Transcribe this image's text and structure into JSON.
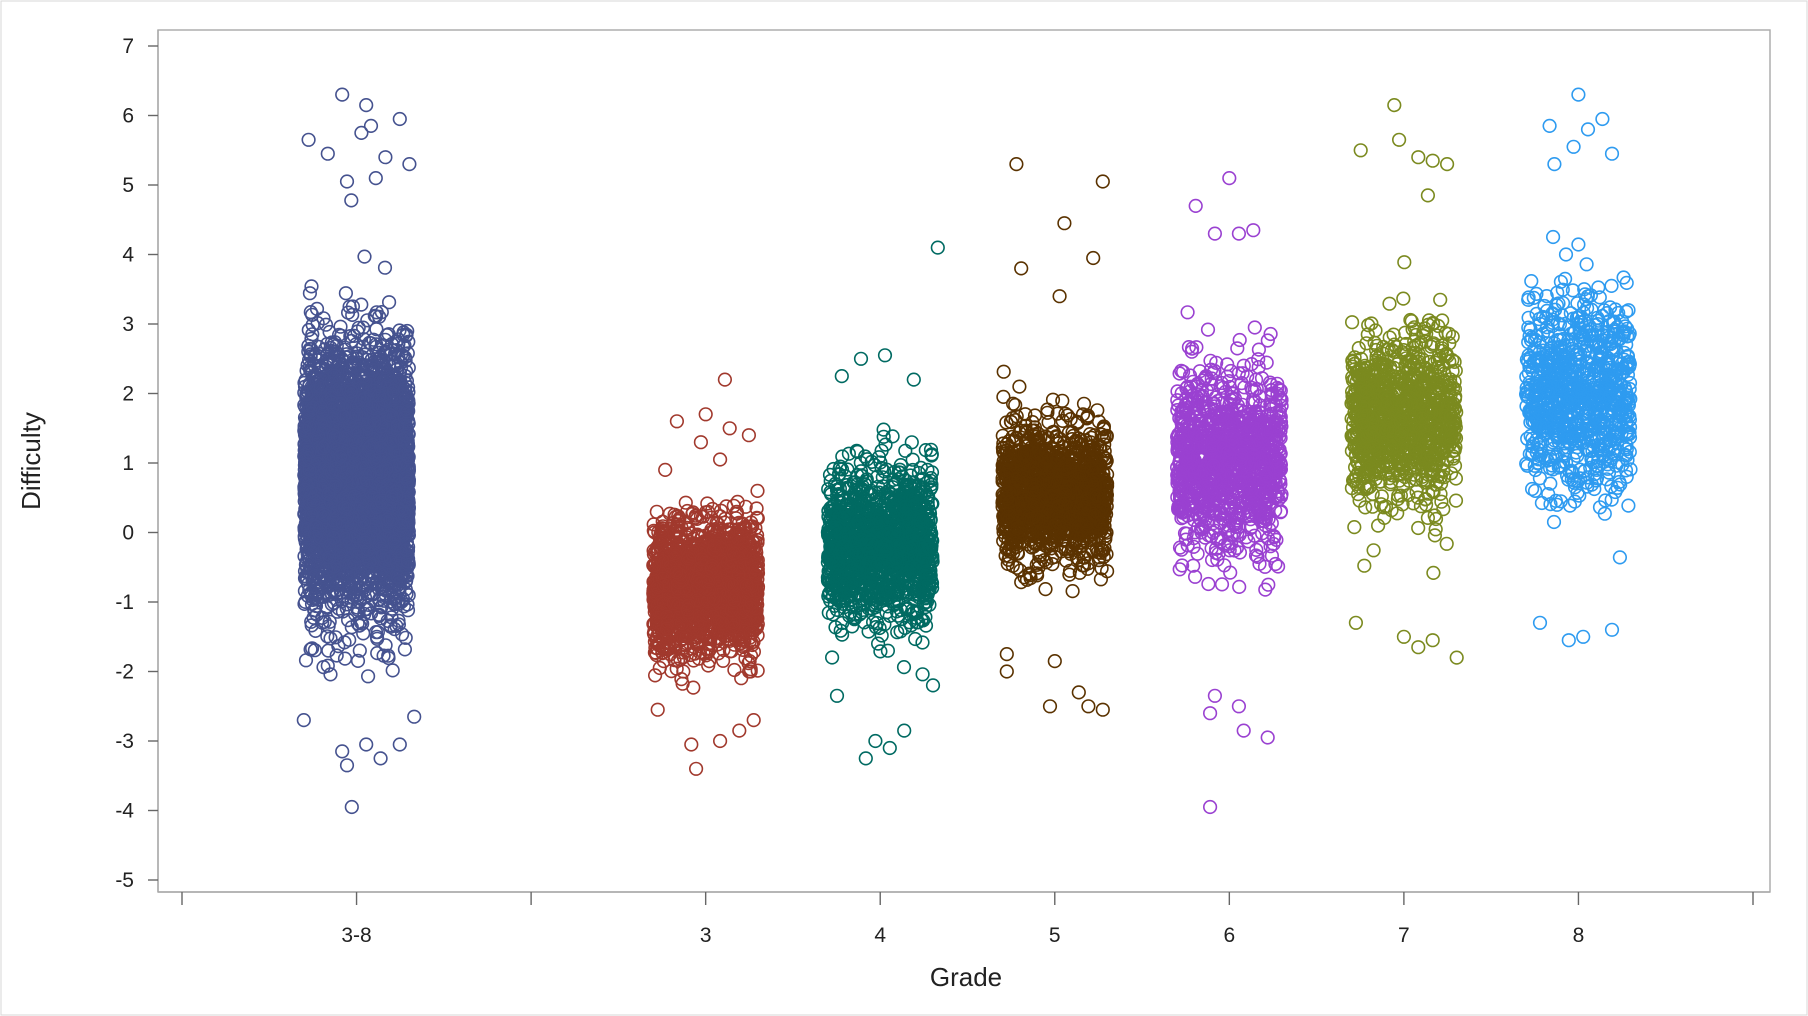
{
  "chart_data": {
    "type": "scatter",
    "title": "",
    "xlabel": "Grade",
    "ylabel": "Difficulty",
    "ylim": [
      -5,
      7
    ],
    "yticks": [
      "7",
      "6",
      "5",
      "4",
      "3",
      "2",
      "1",
      "0",
      "-1",
      "-2",
      "-3",
      "-4",
      "-5"
    ],
    "categories": [
      "",
      "3-8",
      "",
      "3",
      "4",
      "5",
      "6",
      "7",
      "8",
      ""
    ],
    "marker": "open-circle",
    "grid": false,
    "legend": "none",
    "series": [
      {
        "category": "3-8",
        "color": "#45528f",
        "count": 5200,
        "center": 0.8,
        "spread": 1.35,
        "min": -3.95,
        "max": 6.3,
        "outliers": [
          [
            -0.05,
            -3.95
          ],
          [
            -0.1,
            -3.35
          ],
          [
            0.25,
            -3.25
          ],
          [
            -0.15,
            -3.15
          ],
          [
            0.1,
            -3.05
          ],
          [
            0.45,
            -3.05
          ],
          [
            -0.55,
            -2.7
          ],
          [
            0.6,
            -2.65
          ],
          [
            -0.5,
            5.65
          ],
          [
            -0.15,
            6.3
          ],
          [
            0.1,
            6.15
          ],
          [
            0.15,
            5.85
          ],
          [
            0.05,
            5.75
          ],
          [
            0.45,
            5.95
          ],
          [
            -0.3,
            5.45
          ],
          [
            0.3,
            5.4
          ],
          [
            0.2,
            5.1
          ],
          [
            -0.1,
            5.05
          ],
          [
            0.55,
            5.3
          ]
        ]
      },
      {
        "category": "3",
        "color": "#a1392d",
        "count": 1900,
        "center": -0.8,
        "spread": 0.75,
        "min": -3.4,
        "max": 2.2,
        "outliers": [
          [
            -0.1,
            -3.4
          ],
          [
            -0.15,
            -3.05
          ],
          [
            0.15,
            -3.0
          ],
          [
            0.35,
            -2.85
          ],
          [
            0.5,
            -2.7
          ],
          [
            -0.5,
            -2.55
          ],
          [
            0.2,
            2.2
          ],
          [
            -0.3,
            1.6
          ],
          [
            0.0,
            1.7
          ],
          [
            0.45,
            1.4
          ],
          [
            0.25,
            1.5
          ],
          [
            -0.05,
            1.3
          ],
          [
            0.15,
            1.05
          ]
        ]
      },
      {
        "category": "4",
        "color": "#006a62",
        "count": 1400,
        "center": -0.2,
        "spread": 0.85,
        "min": -3.25,
        "max": 4.1,
        "outliers": [
          [
            -0.15,
            -3.25
          ],
          [
            0.1,
            -3.1
          ],
          [
            -0.05,
            -3.0
          ],
          [
            0.25,
            -2.85
          ],
          [
            0.55,
            -2.2
          ],
          [
            -0.45,
            -2.35
          ],
          [
            0.6,
            4.1
          ],
          [
            -0.2,
            2.5
          ],
          [
            0.05,
            2.55
          ],
          [
            0.35,
            2.2
          ],
          [
            -0.4,
            2.25
          ]
        ]
      },
      {
        "category": "5",
        "color": "#5a3200",
        "count": 1500,
        "center": 0.55,
        "spread": 0.75,
        "min": -2.55,
        "max": 5.3,
        "outliers": [
          [
            -0.4,
            5.3
          ],
          [
            0.5,
            5.05
          ],
          [
            0.1,
            4.45
          ],
          [
            0.4,
            3.95
          ],
          [
            -0.35,
            3.8
          ],
          [
            0.05,
            3.4
          ],
          [
            -0.5,
            -1.75
          ],
          [
            -0.5,
            -2.0
          ],
          [
            0.0,
            -1.85
          ],
          [
            0.25,
            -2.3
          ],
          [
            -0.05,
            -2.5
          ],
          [
            0.35,
            -2.5
          ],
          [
            0.5,
            -2.55
          ]
        ]
      },
      {
        "category": "6",
        "color": "#9a41d1",
        "count": 1200,
        "center": 1.05,
        "spread": 1.0,
        "min": -3.95,
        "max": 5.1,
        "outliers": [
          [
            -0.2,
            -3.95
          ],
          [
            -0.15,
            -2.35
          ],
          [
            0.1,
            -2.5
          ],
          [
            0.15,
            -2.85
          ],
          [
            0.4,
            -2.95
          ],
          [
            -0.2,
            -2.6
          ],
          [
            0.0,
            5.1
          ],
          [
            -0.35,
            4.7
          ],
          [
            -0.15,
            4.3
          ],
          [
            0.1,
            4.3
          ],
          [
            0.25,
            4.35
          ]
        ]
      },
      {
        "category": "7",
        "color": "#7b8a1f",
        "count": 1100,
        "center": 1.6,
        "spread": 0.95,
        "min": -1.8,
        "max": 6.15,
        "outliers": [
          [
            -0.1,
            6.15
          ],
          [
            -0.05,
            5.65
          ],
          [
            -0.45,
            5.5
          ],
          [
            0.15,
            5.4
          ],
          [
            0.3,
            5.35
          ],
          [
            0.45,
            5.3
          ],
          [
            0.25,
            4.85
          ],
          [
            -0.5,
            -1.3
          ],
          [
            0.15,
            -1.65
          ],
          [
            0.3,
            -1.55
          ],
          [
            0.55,
            -1.8
          ],
          [
            0.0,
            -1.5
          ]
        ]
      },
      {
        "category": "8",
        "color": "#2e9bf0",
        "count": 900,
        "center": 2.0,
        "spread": 1.15,
        "min": -1.55,
        "max": 6.3,
        "outliers": [
          [
            0.0,
            6.3
          ],
          [
            -0.3,
            5.85
          ],
          [
            0.1,
            5.8
          ],
          [
            0.25,
            5.95
          ],
          [
            -0.05,
            5.55
          ],
          [
            0.35,
            5.45
          ],
          [
            -0.25,
            5.3
          ],
          [
            -0.4,
            -1.3
          ],
          [
            -0.1,
            -1.55
          ],
          [
            0.05,
            -1.5
          ],
          [
            0.35,
            -1.4
          ]
        ]
      }
    ]
  }
}
